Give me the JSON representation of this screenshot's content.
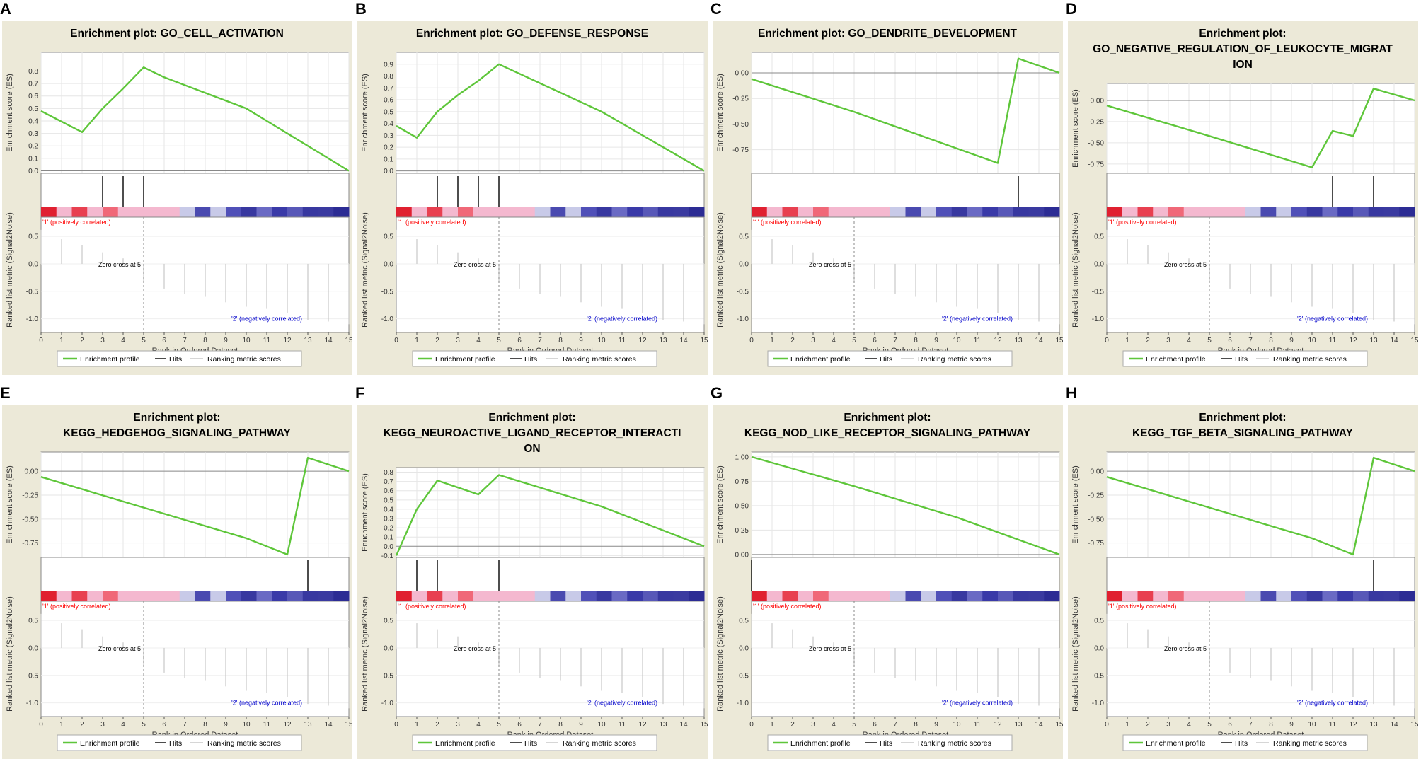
{
  "legend": {
    "profile": "Enrichment profile",
    "hits": "Hits",
    "ranking": "Ranking metric scores"
  },
  "labels": {
    "es_axis": "Enrichment score (ES)",
    "rank_axis": "Ranked list metric (Signal2Noise)",
    "x_axis": "Rank in Ordered Dataset",
    "pos": "'1' (positively correlated)",
    "neg": "'2' (negatively correlated)",
    "zero_cross": "Zero cross at 5"
  },
  "colors": {
    "frame": "#ece9d8",
    "profile": "#5ec63a",
    "hits": "#000000",
    "pos_text": "#ff0000",
    "neg_text": "#0000cc"
  },
  "heatmap_colors": [
    "#e02030",
    "#f4b8cf",
    "#e84050",
    "#f4b8cf",
    "#f06878",
    "#f4b8cf",
    "#f4b8cf",
    "#f4b8cf",
    "#f4b8cf",
    "#c8cae8",
    "#4a4ab0",
    "#c8cae8",
    "#5050b8",
    "#3838a0",
    "#6a6ac4",
    "#3a3aa8",
    "#5858b8",
    "#3838a0",
    "#3a3aa0",
    "#2c2c94"
  ],
  "ranking_metric": [
    0.62,
    0.45,
    0.34,
    0.21,
    0.1,
    -0.34,
    -0.45,
    -0.55,
    -0.6,
    -0.7,
    -0.78,
    -0.82,
    -0.9,
    -1.02,
    -1.05,
    -1.1
  ],
  "chart_data": [
    {
      "letter": "A",
      "title_lines": [
        "Enrichment plot: GO_CELL_ACTIVATION"
      ],
      "type": "line",
      "x": [
        0,
        2,
        3,
        4,
        5,
        6,
        10,
        15
      ],
      "es": [
        0.48,
        0.31,
        0.5,
        0.66,
        0.83,
        0.75,
        0.5,
        0.0
      ],
      "es_ylim": [
        -0.02,
        0.95
      ],
      "es_ticks": [
        0.0,
        0.1,
        0.2,
        0.3,
        0.4,
        0.5,
        0.6,
        0.7,
        0.8
      ],
      "es_tick_labels": [
        "0.0",
        "0.1",
        "0.2",
        "0.3",
        "0.4",
        "0.5",
        "0.6",
        "0.7",
        "0.8"
      ],
      "hits": [
        3,
        4,
        5
      ],
      "ranking_yticks": [
        "0.5",
        "0.0",
        "-0.5",
        "-1.0"
      ],
      "xticks": [
        "0",
        "1",
        "2",
        "3",
        "4",
        "5",
        "6",
        "7",
        "8",
        "9",
        "10",
        "11",
        "12",
        "13",
        "14",
        "15"
      ]
    },
    {
      "letter": "B",
      "title_lines": [
        "Enrichment plot: GO_DEFENSE_RESPONSE"
      ],
      "type": "line",
      "x": [
        0,
        1,
        2,
        3,
        4,
        5,
        6,
        10,
        15
      ],
      "es": [
        0.38,
        0.28,
        0.5,
        0.64,
        0.76,
        0.9,
        0.82,
        0.5,
        0.0
      ],
      "es_ylim": [
        -0.02,
        1.0
      ],
      "es_ticks": [
        0.0,
        0.1,
        0.2,
        0.3,
        0.4,
        0.5,
        0.6,
        0.7,
        0.8,
        0.9
      ],
      "es_tick_labels": [
        "0.0",
        "0.1",
        "0.2",
        "0.3",
        "0.4",
        "0.5",
        "0.6",
        "0.7",
        "0.8",
        "0.9"
      ],
      "hits": [
        2,
        3,
        4,
        5
      ],
      "ranking_yticks": [
        "0.5",
        "0.0",
        "-0.5",
        "-1.0"
      ],
      "xticks": [
        "0",
        "1",
        "2",
        "3",
        "4",
        "5",
        "6",
        "7",
        "8",
        "9",
        "10",
        "11",
        "12",
        "13",
        "14",
        "15"
      ]
    },
    {
      "letter": "C",
      "title_lines": [
        "Enrichment plot: GO_DENDRITE_DEVELOPMENT"
      ],
      "type": "line",
      "x": [
        0,
        5,
        12,
        13,
        15
      ],
      "es": [
        -0.06,
        -0.38,
        -0.88,
        0.14,
        0.0
      ],
      "es_ylim": [
        -0.98,
        0.2
      ],
      "es_ticks": [
        0.0,
        -0.25,
        -0.5,
        -0.75
      ],
      "es_tick_labels": [
        "0.00",
        "-0.25",
        "-0.50",
        "-0.75"
      ],
      "hits": [
        13
      ],
      "ranking_yticks": [
        "0.5",
        "0.0",
        "-0.5",
        "-1.0"
      ],
      "xticks": [
        "0",
        "1",
        "2",
        "3",
        "4",
        "5",
        "6",
        "7",
        "8",
        "9",
        "10",
        "11",
        "12",
        "13",
        "14",
        "15"
      ]
    },
    {
      "letter": "D",
      "title_lines": [
        "Enrichment plot:",
        "GO_NEGATIVE_REGULATION_OF_LEUKOCYTE_MIGRAT",
        "ION"
      ],
      "type": "line",
      "x": [
        0,
        5,
        10,
        11,
        12,
        13,
        15
      ],
      "es": [
        -0.06,
        -0.42,
        -0.79,
        -0.36,
        -0.42,
        0.14,
        0.0
      ],
      "es_ylim": [
        -0.86,
        0.2
      ],
      "es_ticks": [
        0.0,
        -0.25,
        -0.5,
        -0.75
      ],
      "es_tick_labels": [
        "0.00",
        "-0.25",
        "-0.50",
        "-0.75"
      ],
      "hits": [
        11,
        13
      ],
      "ranking_yticks": [
        "0.5",
        "0.0",
        "-0.5",
        "-1.0"
      ],
      "xticks": [
        "0",
        "1",
        "2",
        "3",
        "4",
        "5",
        "6",
        "7",
        "8",
        "9",
        "10",
        "11",
        "12",
        "13",
        "14",
        "15"
      ]
    },
    {
      "letter": "E",
      "title_lines": [
        "Enrichment plot:",
        "KEGG_HEDGEHOG_SIGNALING_PATHWAY"
      ],
      "type": "line",
      "x": [
        0,
        5,
        10,
        12,
        13,
        15
      ],
      "es": [
        -0.06,
        -0.38,
        -0.7,
        -0.87,
        0.14,
        0.0
      ],
      "es_ylim": [
        -0.9,
        0.2
      ],
      "es_ticks": [
        0.0,
        -0.25,
        -0.5,
        -0.75
      ],
      "es_tick_labels": [
        "0.00",
        "-0.25",
        "-0.50",
        "-0.75"
      ],
      "hits": [
        13
      ],
      "ranking_yticks": [
        "0.5",
        "0.0",
        "-0.5",
        "-1.0"
      ],
      "xticks": [
        "0",
        "1",
        "2",
        "3",
        "4",
        "5",
        "6",
        "7",
        "8",
        "9",
        "10",
        "11",
        "12",
        "13",
        "14",
        "15"
      ]
    },
    {
      "letter": "F",
      "title_lines": [
        "Enrichment plot:",
        "KEGG_NEUROACTIVE_LIGAND_RECEPTOR_INTERACTI",
        "ON"
      ],
      "type": "line",
      "x": [
        0,
        1,
        2,
        4,
        5,
        10,
        15
      ],
      "es": [
        -0.1,
        0.4,
        0.71,
        0.56,
        0.77,
        0.43,
        0.0
      ],
      "es_ylim": [
        -0.12,
        0.85
      ],
      "es_ticks": [
        -0.1,
        0.0,
        0.1,
        0.2,
        0.3,
        0.4,
        0.5,
        0.6,
        0.7,
        0.8
      ],
      "es_tick_labels": [
        "-0.1",
        "0.0",
        "0.1",
        "0.2",
        "0.3",
        "0.4",
        "0.5",
        "0.6",
        "0.7",
        "0.8"
      ],
      "hits": [
        1,
        2,
        5
      ],
      "ranking_yticks": [
        "0.5",
        "0.0",
        "-0.5",
        "-1.0"
      ],
      "xticks": [
        "0",
        "1",
        "2",
        "3",
        "4",
        "5",
        "6",
        "7",
        "8",
        "9",
        "10",
        "11",
        "12",
        "13",
        "14",
        "15"
      ]
    },
    {
      "letter": "G",
      "title_lines": [
        "Enrichment plot:",
        "KEGG_NOD_LIKE_RECEPTOR_SIGNALING_PATHWAY"
      ],
      "type": "line",
      "x": [
        0,
        5,
        10,
        15
      ],
      "es": [
        1.0,
        0.7,
        0.38,
        0.0
      ],
      "es_ylim": [
        -0.03,
        1.05
      ],
      "es_ticks": [
        0.0,
        0.25,
        0.5,
        0.75,
        1.0
      ],
      "es_tick_labels": [
        "0.00",
        "0.25",
        "0.50",
        "0.75",
        "1.00"
      ],
      "hits": [
        0
      ],
      "ranking_yticks": [
        "0.5",
        "0.0",
        "-0.5",
        "-1.0"
      ],
      "xticks": [
        "0",
        "1",
        "2",
        "3",
        "4",
        "5",
        "6",
        "7",
        "8",
        "9",
        "10",
        "11",
        "12",
        "13",
        "14",
        "15"
      ]
    },
    {
      "letter": "H",
      "title_lines": [
        "Enrichment plot:",
        "KEGG_TGF_BETA_SIGNALING_PATHWAY"
      ],
      "type": "line",
      "x": [
        0,
        5,
        10,
        12,
        13,
        15
      ],
      "es": [
        -0.06,
        -0.38,
        -0.7,
        -0.87,
        0.14,
        0.0
      ],
      "es_ylim": [
        -0.9,
        0.2
      ],
      "es_ticks": [
        0.0,
        -0.25,
        -0.5,
        -0.75
      ],
      "es_tick_labels": [
        "0.00",
        "-0.25",
        "-0.50",
        "-0.75"
      ],
      "hits": [
        13
      ],
      "ranking_yticks": [
        "0.5",
        "0.0",
        "-0.5",
        "-1.0"
      ],
      "xticks": [
        "0",
        "1",
        "2",
        "3",
        "4",
        "5",
        "6",
        "7",
        "8",
        "9",
        "10",
        "11",
        "12",
        "13",
        "14",
        "15"
      ]
    }
  ]
}
